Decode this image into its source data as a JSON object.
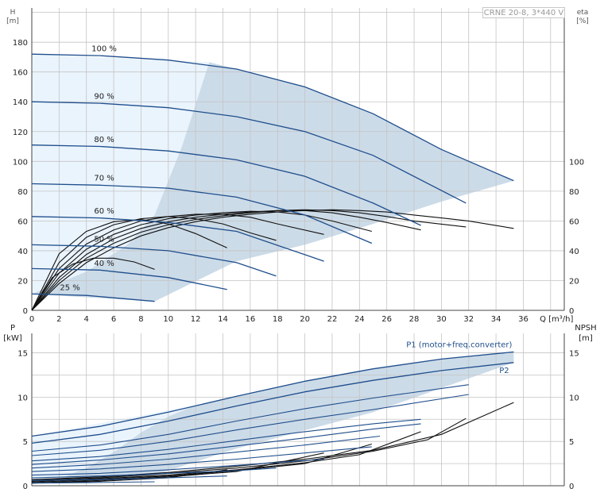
{
  "model": "CRNE 20-8, 3*440 V",
  "top_chart": {
    "y_label": "H",
    "y_unit": "[m]",
    "y2_label": "eta",
    "y2_unit": "[%]",
    "x_label": "Q [m³/h]"
  },
  "bottom_chart": {
    "y_label": "P",
    "y_unit": "[kW]",
    "y2_label": "NPSH",
    "y2_unit": "[m]",
    "p1_label": "P1 (motor+freq.converter)",
    "p2_label": "P2"
  },
  "colors": {
    "curve": "#1f4e8c",
    "fill": "#ccdbe8",
    "fill_light": "#eaf4fd",
    "grid": "#c4c4c4"
  },
  "chart_data": [
    {
      "type": "line",
      "title": "",
      "xlabel": "Q [m³/h]",
      "ylabel": "H [m]",
      "y2label": "eta [%]",
      "xlim": [
        0,
        39
      ],
      "ylim": [
        0,
        203
      ],
      "y2lim": [
        0,
        203
      ],
      "x_ticks": [
        0,
        2,
        4,
        6,
        8,
        10,
        12,
        14,
        16,
        18,
        20,
        22,
        24,
        26,
        28,
        30,
        32,
        34,
        36
      ],
      "y_ticks": [
        0,
        20,
        40,
        60,
        80,
        100,
        120,
        140,
        160,
        180
      ],
      "y2_ticks": [
        0,
        20,
        40,
        60,
        80,
        100
      ],
      "grid": true,
      "series": [
        {
          "name": "100 %",
          "x": [
            0,
            5,
            10,
            15,
            20,
            25,
            30,
            35.3
          ],
          "y": [
            172,
            171,
            168,
            162,
            150,
            132,
            108,
            87
          ]
        },
        {
          "name": "90 %",
          "x": [
            0,
            5,
            10,
            15,
            20,
            25,
            31.8
          ],
          "y": [
            140,
            139,
            136,
            130,
            120,
            104,
            72
          ]
        },
        {
          "name": "80 %",
          "x": [
            0,
            5,
            10,
            15,
            20,
            25,
            28.5
          ],
          "y": [
            111,
            110,
            107,
            101,
            90,
            72,
            57
          ]
        },
        {
          "name": "70 %",
          "x": [
            0,
            5,
            10,
            15,
            20,
            24.9
          ],
          "y": [
            85,
            84,
            82,
            76,
            64,
            45
          ]
        },
        {
          "name": "60 %",
          "x": [
            0,
            5,
            10,
            15,
            21.4
          ],
          "y": [
            63,
            62,
            59,
            53,
            33
          ]
        },
        {
          "name": "50 %",
          "x": [
            0,
            5,
            10,
            15,
            17.9
          ],
          "y": [
            44,
            43,
            40,
            32,
            23
          ]
        },
        {
          "name": "40 %",
          "x": [
            0,
            5,
            10,
            14.3
          ],
          "y": [
            28,
            27,
            22,
            14
          ]
        },
        {
          "name": "25 %",
          "x": [
            0,
            4,
            9
          ],
          "y": [
            11,
            10,
            6
          ]
        }
      ],
      "eta_curves": [
        {
          "x": [
            0,
            2,
            4,
            6,
            8,
            10,
            12,
            14,
            16,
            18,
            20,
            22,
            24,
            26,
            28,
            30,
            32,
            35.3
          ],
          "y": [
            0,
            18,
            32,
            42,
            50,
            55.5,
            59.5,
            62.5,
            64.5,
            66,
            67,
            67.5,
            67,
            66,
            64,
            62,
            60,
            55
          ]
        },
        {
          "x": [
            0,
            2,
            4,
            6,
            8,
            10,
            12,
            14,
            16,
            18,
            20,
            22,
            24,
            26,
            28,
            31.8
          ],
          "y": [
            0,
            20,
            35,
            45,
            52.5,
            57.5,
            61,
            63.5,
            65.5,
            67,
            67.5,
            67,
            65.5,
            63,
            60,
            56
          ]
        },
        {
          "x": [
            0,
            2,
            4,
            6,
            8,
            10,
            12,
            14,
            16,
            18,
            20,
            22,
            24,
            26,
            28.5
          ],
          "y": [
            0,
            22,
            37.5,
            48,
            55,
            59.5,
            62.5,
            64.5,
            66,
            67,
            67,
            65.5,
            62.5,
            59,
            54
          ]
        },
        {
          "x": [
            0,
            2,
            4,
            6,
            8,
            10,
            12,
            14,
            16,
            18,
            20,
            22,
            24.9
          ],
          "y": [
            0,
            25,
            41,
            51,
            57.5,
            61.5,
            64,
            65.5,
            66.5,
            66,
            64,
            60,
            53
          ]
        },
        {
          "x": [
            0,
            2,
            4,
            6,
            8,
            10,
            12,
            14,
            16,
            18,
            21.4
          ],
          "y": [
            0,
            28,
            44.5,
            54,
            60,
            63,
            64.5,
            64.5,
            62.5,
            58,
            51
          ]
        },
        {
          "x": [
            0,
            2,
            4,
            6,
            8,
            10,
            12,
            14,
            16,
            17.9
          ],
          "y": [
            0,
            32,
            49,
            57.5,
            61.5,
            63,
            61.5,
            58,
            52,
            47
          ]
        },
        {
          "x": [
            0,
            2,
            4,
            6,
            8,
            10,
            12,
            14.3
          ],
          "y": [
            0,
            38,
            53,
            59.5,
            61,
            58,
            51.5,
            42
          ]
        },
        {
          "x": [
            0,
            1.5,
            3,
            4.5,
            6,
            7.5,
            9
          ],
          "y": [
            0,
            22,
            31,
            35,
            35,
            32.5,
            27.5
          ]
        }
      ]
    },
    {
      "type": "line",
      "title": "",
      "xlabel": "Q [m³/h]",
      "ylabel": "P [kW]",
      "y2label": "NPSH [m]",
      "xlim": [
        0,
        39
      ],
      "ylim": [
        0,
        17.2
      ],
      "y2lim": [
        0,
        17.2
      ],
      "y_ticks": [
        0,
        5,
        10,
        15
      ],
      "y2_ticks": [
        0,
        5,
        10,
        15
      ],
      "grid": true,
      "series": [
        {
          "name": "P1 (motor+freq.converter)",
          "x": [
            0,
            5,
            10,
            15,
            20,
            25,
            30,
            35.3
          ],
          "y": [
            5.6,
            6.7,
            8.3,
            10.1,
            11.8,
            13.2,
            14.3,
            15.1
          ]
        },
        {
          "name": "P2",
          "x": [
            0,
            5,
            10,
            15,
            20,
            25,
            30,
            35.3
          ],
          "y": [
            4.8,
            5.8,
            7.3,
            9.0,
            10.6,
            11.9,
            13.0,
            13.9
          ]
        }
      ],
      "partial_power_curves": [
        {
          "x": [
            0,
            5,
            10,
            15,
            20,
            25,
            32
          ],
          "y": [
            3.9,
            4.6,
            5.8,
            7.3,
            8.7,
            9.9,
            11.4
          ]
        },
        {
          "x": [
            0,
            5,
            10,
            15,
            20,
            25,
            32
          ],
          "y": [
            3.4,
            4.0,
            5.0,
            6.3,
            7.5,
            8.6,
            10.3
          ]
        },
        {
          "x": [
            0,
            5,
            10,
            15,
            20,
            25,
            28.5
          ],
          "y": [
            2.8,
            3.3,
            4.1,
            5.1,
            6.1,
            7.0,
            7.5
          ]
        },
        {
          "x": [
            0,
            5,
            10,
            15,
            20,
            25,
            28.5
          ],
          "y": [
            2.4,
            2.9,
            3.6,
            4.5,
            5.4,
            6.4,
            7.0
          ]
        },
        {
          "x": [
            0,
            5,
            10,
            15,
            20,
            25.5
          ],
          "y": [
            2.0,
            2.4,
            3.0,
            3.8,
            4.6,
            5.6
          ]
        },
        {
          "x": [
            0,
            5,
            10,
            15,
            20,
            24.9
          ],
          "y": [
            1.6,
            1.9,
            2.4,
            3.0,
            3.7,
            4.4
          ]
        },
        {
          "x": [
            0,
            5,
            10,
            15,
            21.4
          ],
          "y": [
            1.2,
            1.4,
            1.8,
            2.3,
            3.0
          ]
        },
        {
          "x": [
            0,
            5,
            10,
            15,
            17.9
          ],
          "y": [
            0.9,
            1.1,
            1.4,
            1.7,
            2.0
          ]
        },
        {
          "x": [
            0,
            5,
            10,
            14.3
          ],
          "y": [
            0.6,
            0.7,
            0.9,
            1.1
          ]
        },
        {
          "x": [
            0,
            4,
            9
          ],
          "y": [
            0.3,
            0.35,
            0.45
          ]
        }
      ],
      "npsh_curves": [
        {
          "x": [
            0,
            5,
            10,
            15,
            20,
            25,
            30,
            35.3
          ],
          "y": [
            0.7,
            1.0,
            1.5,
            2.2,
            3.0,
            4.0,
            5.8,
            9.4
          ]
        },
        {
          "x": [
            0,
            5,
            10,
            15,
            20,
            25,
            29,
            31.8
          ],
          "y": [
            0.6,
            0.9,
            1.4,
            2.0,
            2.8,
            3.9,
            5.2,
            7.6
          ]
        },
        {
          "x": [
            0,
            5,
            10,
            15,
            20,
            24,
            28.5
          ],
          "y": [
            0.5,
            0.8,
            1.2,
            1.8,
            2.6,
            3.5,
            6.1
          ]
        },
        {
          "x": [
            0,
            5,
            10,
            15,
            20,
            24.9
          ],
          "y": [
            0.4,
            0.7,
            1.1,
            1.7,
            2.5,
            4.7
          ]
        },
        {
          "x": [
            0,
            5,
            10,
            15,
            21.4
          ],
          "y": [
            0.3,
            0.6,
            1.0,
            1.6,
            3.7
          ]
        },
        {
          "x": [
            0,
            5,
            10,
            14.3
          ],
          "y": [
            0.3,
            0.5,
            0.9,
            1.8
          ]
        }
      ]
    }
  ],
  "regions": {
    "top_dark": {
      "x": [
        0,
        13,
        14,
        16,
        20,
        25,
        30,
        35.3,
        35.3,
        30,
        25,
        20,
        15,
        9,
        6,
        3,
        0
      ],
      "y": [
        172,
        166.6,
        166,
        164,
        157,
        138,
        112,
        87,
        87,
        73,
        58,
        44,
        33,
        6,
        10,
        11,
        11
      ]
    },
    "top_light_boundary": {
      "x": [
        0,
        4,
        7,
        9,
        11,
        13
      ],
      "y": [
        11,
        26,
        44,
        64,
        110,
        166.6
      ]
    },
    "bottom_dark": {
      "x": [
        0,
        10,
        12,
        15,
        20,
        25,
        30,
        35.3,
        35.3,
        25,
        15,
        9,
        0
      ],
      "y": [
        5.6,
        8.3,
        9.1,
        10.1,
        11.8,
        13.2,
        14.3,
        15.1,
        13.9,
        8.3,
        4.2,
        1.2,
        0.3
      ]
    },
    "bottom_light_boundary": {
      "x": [
        0,
        2,
        4,
        6,
        8,
        10,
        12
      ],
      "y": [
        0.3,
        0.8,
        2.0,
        3.8,
        6.0,
        7.8,
        9.1
      ]
    }
  }
}
